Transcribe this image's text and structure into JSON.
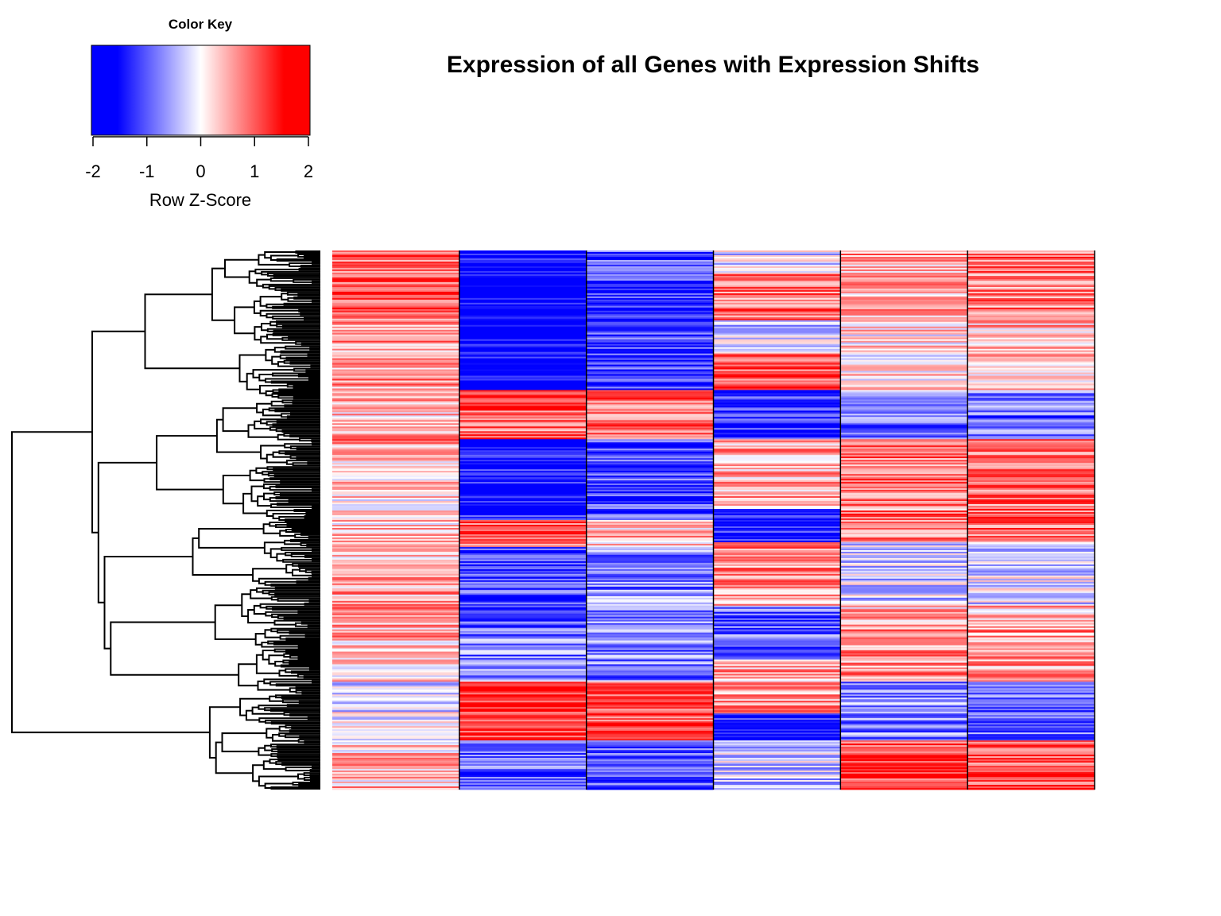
{
  "chart_data": {
    "type": "heatmap",
    "title": "Expression of all Genes with Expression Shifts",
    "columns": 6,
    "column_labels": [],
    "row_dendrogram": true,
    "color_key": {
      "title": "Color Key",
      "xlabel": "Row Z-Score",
      "range": [
        -2,
        2
      ],
      "ticks": [
        "-2",
        "-1",
        "0",
        "1",
        "2"
      ],
      "colors": {
        "low": "#0000ff",
        "mid": "#ffffff",
        "high": "#ff0000"
      }
    },
    "column_blocks": [
      [
        {
          "from": 0.0,
          "to": 0.045,
          "mean": 0.9
        },
        {
          "from": 0.045,
          "to": 0.12,
          "mean": 1.1
        },
        {
          "from": 0.12,
          "to": 0.26,
          "mean": 0.7
        },
        {
          "from": 0.26,
          "to": 0.33,
          "mean": 0.4
        },
        {
          "from": 0.33,
          "to": 0.38,
          "mean": 0.7
        },
        {
          "from": 0.38,
          "to": 0.53,
          "mean": 0.3
        },
        {
          "from": 0.53,
          "to": 0.62,
          "mean": 0.5
        },
        {
          "from": 0.62,
          "to": 0.72,
          "mean": 0.6
        },
        {
          "from": 0.72,
          "to": 0.8,
          "mean": 0.3
        },
        {
          "from": 0.8,
          "to": 0.91,
          "mean": -0.2
        },
        {
          "from": 0.91,
          "to": 1.0,
          "mean": 0.4
        }
      ],
      [
        {
          "from": 0.0,
          "to": 0.26,
          "mean": -1.9
        },
        {
          "from": 0.26,
          "to": 0.35,
          "mean": 1.1
        },
        {
          "from": 0.35,
          "to": 0.5,
          "mean": -1.7
        },
        {
          "from": 0.5,
          "to": 0.55,
          "mean": 1.2
        },
        {
          "from": 0.55,
          "to": 0.7,
          "mean": -1.3
        },
        {
          "from": 0.7,
          "to": 0.8,
          "mean": -0.9
        },
        {
          "from": 0.8,
          "to": 0.91,
          "mean": 1.4
        },
        {
          "from": 0.91,
          "to": 1.0,
          "mean": -1.1
        }
      ],
      [
        {
          "from": 0.0,
          "to": 0.26,
          "mean": -1.3
        },
        {
          "from": 0.26,
          "to": 0.35,
          "mean": 1.1
        },
        {
          "from": 0.35,
          "to": 0.5,
          "mean": -1.3
        },
        {
          "from": 0.5,
          "to": 0.55,
          "mean": 0.5
        },
        {
          "from": 0.55,
          "to": 0.7,
          "mean": -0.8
        },
        {
          "from": 0.7,
          "to": 0.8,
          "mean": -0.9
        },
        {
          "from": 0.8,
          "to": 0.91,
          "mean": 1.3
        },
        {
          "from": 0.91,
          "to": 1.0,
          "mean": -1.2
        }
      ],
      [
        {
          "from": 0.0,
          "to": 0.04,
          "mean": -0.2
        },
        {
          "from": 0.04,
          "to": 0.13,
          "mean": 1.0
        },
        {
          "from": 0.13,
          "to": 0.19,
          "mean": -0.4
        },
        {
          "from": 0.19,
          "to": 0.26,
          "mean": 1.2
        },
        {
          "from": 0.26,
          "to": 0.35,
          "mean": -1.5
        },
        {
          "from": 0.35,
          "to": 0.48,
          "mean": 0.6
        },
        {
          "from": 0.48,
          "to": 0.54,
          "mean": -1.7
        },
        {
          "from": 0.54,
          "to": 0.66,
          "mean": 0.8
        },
        {
          "from": 0.66,
          "to": 0.76,
          "mean": -1.0
        },
        {
          "from": 0.76,
          "to": 0.86,
          "mean": 0.6
        },
        {
          "from": 0.86,
          "to": 0.91,
          "mean": -1.6
        },
        {
          "from": 0.91,
          "to": 1.0,
          "mean": -0.4
        }
      ],
      [
        {
          "from": 0.0,
          "to": 0.12,
          "mean": 0.6
        },
        {
          "from": 0.12,
          "to": 0.26,
          "mean": 0.2
        },
        {
          "from": 0.26,
          "to": 0.35,
          "mean": -0.9
        },
        {
          "from": 0.35,
          "to": 0.48,
          "mean": 0.9
        },
        {
          "from": 0.48,
          "to": 0.54,
          "mean": 0.9
        },
        {
          "from": 0.54,
          "to": 0.66,
          "mean": -0.3
        },
        {
          "from": 0.66,
          "to": 0.7,
          "mean": 0.5
        },
        {
          "from": 0.7,
          "to": 0.8,
          "mean": 0.7
        },
        {
          "from": 0.8,
          "to": 0.91,
          "mean": -0.8
        },
        {
          "from": 0.91,
          "to": 1.0,
          "mean": 1.3
        }
      ],
      [
        {
          "from": 0.0,
          "to": 0.12,
          "mean": 0.9
        },
        {
          "from": 0.12,
          "to": 0.26,
          "mean": 0.5
        },
        {
          "from": 0.26,
          "to": 0.35,
          "mean": -1.0
        },
        {
          "from": 0.35,
          "to": 0.48,
          "mean": 1.0
        },
        {
          "from": 0.48,
          "to": 0.54,
          "mean": 1.1
        },
        {
          "from": 0.54,
          "to": 0.66,
          "mean": -0.3
        },
        {
          "from": 0.66,
          "to": 0.7,
          "mean": 0.5
        },
        {
          "from": 0.7,
          "to": 0.8,
          "mean": 0.7
        },
        {
          "from": 0.8,
          "to": 0.91,
          "mean": -1.0
        },
        {
          "from": 0.91,
          "to": 1.0,
          "mean": 1.2
        }
      ]
    ]
  }
}
